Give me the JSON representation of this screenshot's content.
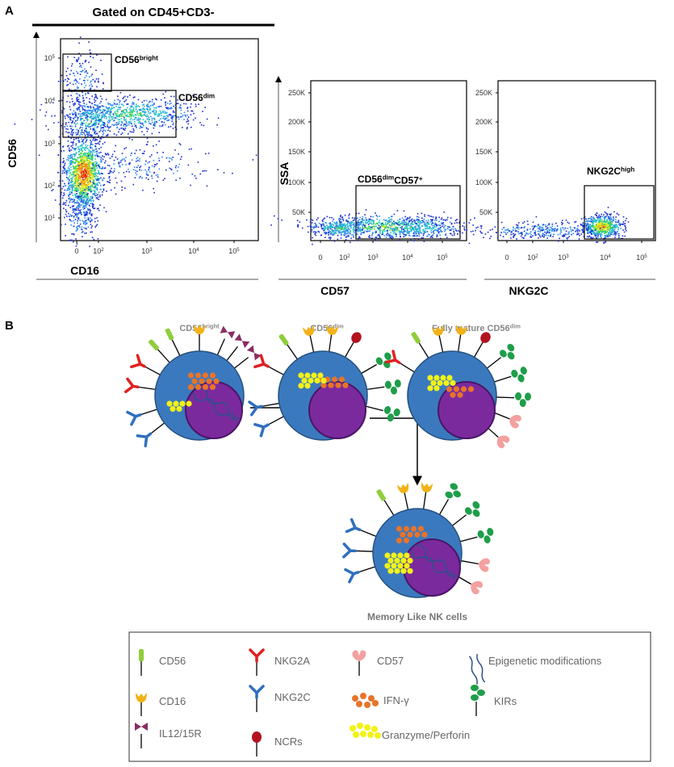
{
  "panel_a": {
    "label": "A",
    "title": "Gated on CD45+CD3-",
    "plots": [
      {
        "ylabel": "CD56",
        "xlabel": "CD16",
        "yticks": [
          [
            {
              "t": "10"
            },
            {
              "sup": "5"
            }
          ],
          [
            {
              "t": "10"
            },
            {
              "sup": "4"
            }
          ],
          [
            {
              "t": "10"
            },
            {
              "sup": "3"
            }
          ],
          [
            {
              "t": "10"
            },
            {
              "sup": "2"
            }
          ],
          [
            {
              "t": "10"
            },
            {
              "sup": "1"
            }
          ]
        ],
        "xticks": [
          [
            {
              "t": "0"
            }
          ],
          [
            {
              "t": "10"
            },
            {
              "sup": "2"
            }
          ],
          [
            {
              "t": "10"
            },
            {
              "sup": "3"
            }
          ],
          [
            {
              "t": "10"
            },
            {
              "sup": "4"
            }
          ],
          [
            {
              "t": "10"
            },
            {
              "sup": "5"
            }
          ]
        ],
        "gates": [
          [
            {
              "t": "CD56"
            },
            {
              "sup": "bright"
            }
          ],
          [
            {
              "t": "CD56"
            },
            {
              "sup": "dim"
            }
          ]
        ]
      },
      {
        "ylabel": "SSA",
        "xlabel": "CD57",
        "yticks": [
          [
            {
              "t": "250K"
            }
          ],
          [
            {
              "t": "200K"
            }
          ],
          [
            {
              "t": "150K"
            }
          ],
          [
            {
              "t": "100K"
            }
          ],
          [
            {
              "t": "50K"
            }
          ]
        ],
        "xticks": [
          [
            {
              "t": "0"
            }
          ],
          [
            {
              "t": "10"
            },
            {
              "sup": "2"
            }
          ],
          [
            {
              "t": "10"
            },
            {
              "sup": "3"
            }
          ],
          [
            {
              "t": "10"
            },
            {
              "sup": "4"
            }
          ],
          [
            {
              "t": "10"
            },
            {
              "sup": "5"
            }
          ]
        ],
        "gates": [
          [
            {
              "t": "CD56"
            },
            {
              "sup": "dim"
            },
            {
              "t": "CD57"
            },
            {
              "sup": "+"
            }
          ]
        ]
      },
      {
        "xlabel": "NKG2C",
        "yticks": [
          [
            {
              "t": "250K"
            }
          ],
          [
            {
              "t": "200K"
            }
          ],
          [
            {
              "t": "150K"
            }
          ],
          [
            {
              "t": "100K"
            }
          ],
          [
            {
              "t": "50K"
            }
          ]
        ],
        "xticks": [
          [
            {
              "t": "0"
            }
          ],
          [
            {
              "t": "10"
            },
            {
              "sup": "2"
            }
          ],
          [
            {
              "t": "10"
            },
            {
              "sup": "3"
            }
          ],
          [
            {
              "t": "10"
            },
            {
              "sup": "4"
            }
          ],
          [
            {
              "t": "10"
            },
            {
              "sup": "5"
            }
          ]
        ],
        "gates": [
          [
            {
              "t": "NKG2C"
            },
            {
              "sup": "high"
            }
          ]
        ]
      }
    ]
  },
  "panel_b": {
    "label": "B",
    "stages": [
      [
        {
          "t": "CD56"
        },
        {
          "sup": "bright"
        }
      ],
      [
        {
          "t": "CD56"
        },
        {
          "sup": "dim"
        }
      ],
      [
        {
          "t": "Fully mature CD56"
        },
        {
          "sup": "dim"
        }
      ]
    ],
    "memory": "Memory Like NK cells",
    "legend": [
      "CD56",
      "CD16",
      "IL12/15R",
      "NKG2A",
      "NKG2C",
      "NCRs",
      "CD57",
      "IFN-γ",
      "Granzyme/Perforin",
      "Epigenetic modifications",
      "KIRs"
    ]
  }
}
